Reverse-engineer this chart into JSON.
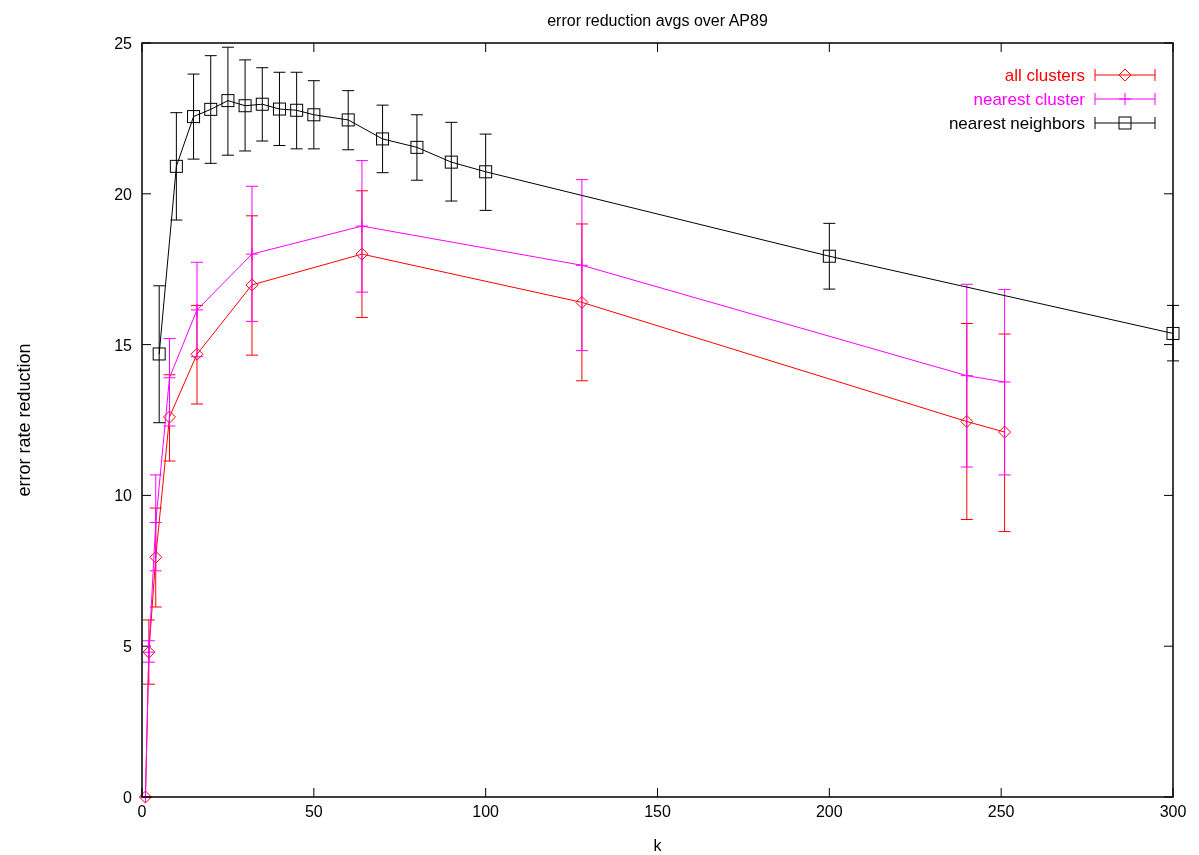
{
  "chart_data": {
    "type": "line",
    "title": "error reduction avgs over AP89",
    "xlabel": "k",
    "ylabel": "error rate reduction",
    "xlim": [
      0,
      300
    ],
    "ylim": [
      0,
      25
    ],
    "xticks": [
      0,
      50,
      100,
      150,
      200,
      250,
      300
    ],
    "yticks": [
      0,
      5,
      10,
      15,
      20,
      25
    ],
    "grid": false,
    "legend": "top right",
    "line_style": "solid",
    "series": [
      {
        "name": "all clusters",
        "color": "#ff0000",
        "marker": "diamond",
        "x": [
          1,
          2,
          4,
          8,
          16,
          32,
          64,
          128,
          240,
          251
        ],
        "values": [
          0,
          4.8,
          7.95,
          12.6,
          14.68,
          16.98,
          18.0,
          16.4,
          12.45,
          12.1
        ],
        "errors": [
          null,
          [
            3.74,
            5.87
          ],
          [
            6.3,
            9.58
          ],
          [
            11.14,
            14.0
          ],
          [
            13.03,
            16.3
          ],
          [
            14.65,
            19.27
          ],
          [
            15.9,
            20.1
          ],
          [
            13.8,
            19.0
          ],
          [
            9.2,
            15.7
          ],
          [
            8.8,
            15.35
          ]
        ]
      },
      {
        "name": "nearest cluster",
        "color": "#ff00ff",
        "marker": "cross",
        "x": [
          1,
          2,
          4,
          8,
          16,
          32,
          64,
          128,
          240,
          251
        ],
        "values": [
          0,
          4.8,
          9.1,
          13.9,
          16.15,
          18.0,
          18.93,
          17.63,
          13.97,
          13.76
        ],
        "errors": [
          null,
          [
            4.47,
            5.18
          ],
          [
            7.5,
            10.68
          ],
          [
            12.3,
            15.2
          ],
          [
            14.6,
            17.73
          ],
          [
            15.77,
            20.25
          ],
          [
            16.74,
            21.1
          ],
          [
            14.8,
            20.47
          ],
          [
            10.94,
            17.0
          ],
          [
            10.68,
            16.83
          ]
        ]
      },
      {
        "name": "nearest neighbors",
        "color": "#000000",
        "marker": "square",
        "x": [
          5,
          10,
          15,
          20,
          25,
          30,
          35,
          40,
          45,
          50,
          60,
          70,
          80,
          90,
          100,
          200,
          300
        ],
        "values": [
          14.69,
          20.91,
          22.56,
          22.8,
          23.09,
          22.92,
          22.97,
          22.81,
          22.77,
          22.62,
          22.45,
          21.82,
          21.54,
          21.05,
          20.73,
          17.93,
          15.37
        ],
        "errors": [
          [
            12.41,
            16.95
          ],
          [
            19.13,
            22.69
          ],
          [
            21.15,
            23.97
          ],
          [
            21.01,
            24.58
          ],
          [
            21.28,
            24.86
          ],
          [
            21.42,
            24.44
          ],
          [
            21.75,
            24.18
          ],
          [
            21.6,
            24.03
          ],
          [
            21.49,
            24.03
          ],
          [
            21.49,
            23.75
          ],
          [
            21.46,
            23.42
          ],
          [
            20.7,
            22.94
          ],
          [
            20.45,
            22.62
          ],
          [
            19.76,
            22.37
          ],
          [
            19.45,
            21.98
          ],
          [
            16.84,
            19.02
          ],
          [
            14.46,
            16.3
          ]
        ]
      }
    ]
  }
}
